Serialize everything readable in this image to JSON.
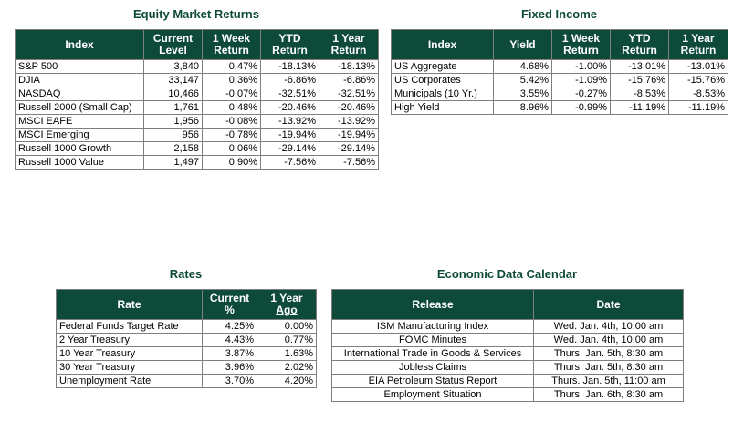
{
  "equity": {
    "title": "Equity Market Returns",
    "headers": {
      "index": "Index",
      "level1": "Current",
      "level2": "Level",
      "week1": "1 Week",
      "week2": "Return",
      "ytd1": "YTD",
      "ytd2": "Return",
      "year1": "1 Year",
      "year2": "Return"
    },
    "rows": [
      {
        "index": "S&P 500",
        "level": "3,840",
        "week": "0.47%",
        "ytd": "-18.13%",
        "year": "-18.13%"
      },
      {
        "index": "DJIA",
        "level": "33,147",
        "week": "0.36%",
        "ytd": "-6.86%",
        "year": "-6.86%"
      },
      {
        "index": "NASDAQ",
        "level": "10,466",
        "week": "-0.07%",
        "ytd": "-32.51%",
        "year": "-32.51%"
      },
      {
        "index": "Russell 2000 (Small Cap)",
        "level": "1,761",
        "week": "0.48%",
        "ytd": "-20.46%",
        "year": "-20.46%"
      },
      {
        "index": "MSCI EAFE",
        "level": "1,956",
        "week": "-0.08%",
        "ytd": "-13.92%",
        "year": "-13.92%"
      },
      {
        "index": "MSCI Emerging",
        "level": "956",
        "week": "-0.78%",
        "ytd": "-19.94%",
        "year": "-19.94%"
      },
      {
        "index": "Russell 1000 Growth",
        "level": "2,158",
        "week": "0.06%",
        "ytd": "-29.14%",
        "year": "-29.14%"
      },
      {
        "index": "Russell 1000 Value",
        "level": "1,497",
        "week": "0.90%",
        "ytd": "-7.56%",
        "year": "-7.56%"
      }
    ]
  },
  "fixed": {
    "title": "Fixed Income",
    "headers": {
      "index": "Index",
      "yield": "Yield",
      "week1": "1 Week",
      "week2": "Return",
      "ytd1": "YTD",
      "ytd2": "Return",
      "year1": "1 Year",
      "year2": "Return"
    },
    "rows": [
      {
        "index": "US Aggregate",
        "yield": "4.68%",
        "week": "-1.00%",
        "ytd": "-13.01%",
        "year": "-13.01%"
      },
      {
        "index": "US Corporates",
        "yield": "5.42%",
        "week": "-1.09%",
        "ytd": "-15.76%",
        "year": "-15.76%"
      },
      {
        "index": "Municipals (10 Yr.)",
        "yield": "3.55%",
        "week": "-0.27%",
        "ytd": "-8.53%",
        "year": "-8.53%"
      },
      {
        "index": "High Yield",
        "yield": "8.96%",
        "week": "-0.99%",
        "ytd": "-11.19%",
        "year": "-11.19%"
      }
    ]
  },
  "rates": {
    "title": "Rates",
    "headers": {
      "rate": "Rate",
      "current1": "Current",
      "current2": "%",
      "year1": "1 Year",
      "year2": "Ago"
    },
    "rows": [
      {
        "rate": "Federal Funds Target Rate",
        "current": "4.25%",
        "year": "0.00%"
      },
      {
        "rate": "2 Year Treasury",
        "current": "4.43%",
        "year": "0.77%"
      },
      {
        "rate": "10 Year Treasury",
        "current": "3.87%",
        "year": "1.63%"
      },
      {
        "rate": "30 Year Treasury",
        "current": "3.96%",
        "year": "2.02%"
      },
      {
        "rate": "Unemployment Rate",
        "current": "3.70%",
        "year": "4.20%"
      }
    ]
  },
  "calendar": {
    "title": "Economic Data Calendar",
    "headers": {
      "release": "Release",
      "date": "Date"
    },
    "rows": [
      {
        "release": "ISM Manufacturing Index",
        "date": "Wed. Jan. 4th, 10:00 am"
      },
      {
        "release": "FOMC Minutes",
        "date": "Wed. Jan. 4th, 10:00 am"
      },
      {
        "release": "International Trade in Goods & Services",
        "date": "Thurs. Jan. 5th, 8:30 am"
      },
      {
        "release": "Jobless Claims",
        "date": "Thurs. Jan. 5th, 8:30 am"
      },
      {
        "release": "EIA Petroleum Status Report",
        "date": "Thurs. Jan. 5th, 11:00 am"
      },
      {
        "release": "Employment Situation",
        "date": "Thurs. Jan. 6th, 8:30 am"
      }
    ]
  },
  "colors": {
    "header_bg": "#0e4a3a",
    "title_text": "#0e4a3a",
    "grid": "#7f7f7f"
  }
}
